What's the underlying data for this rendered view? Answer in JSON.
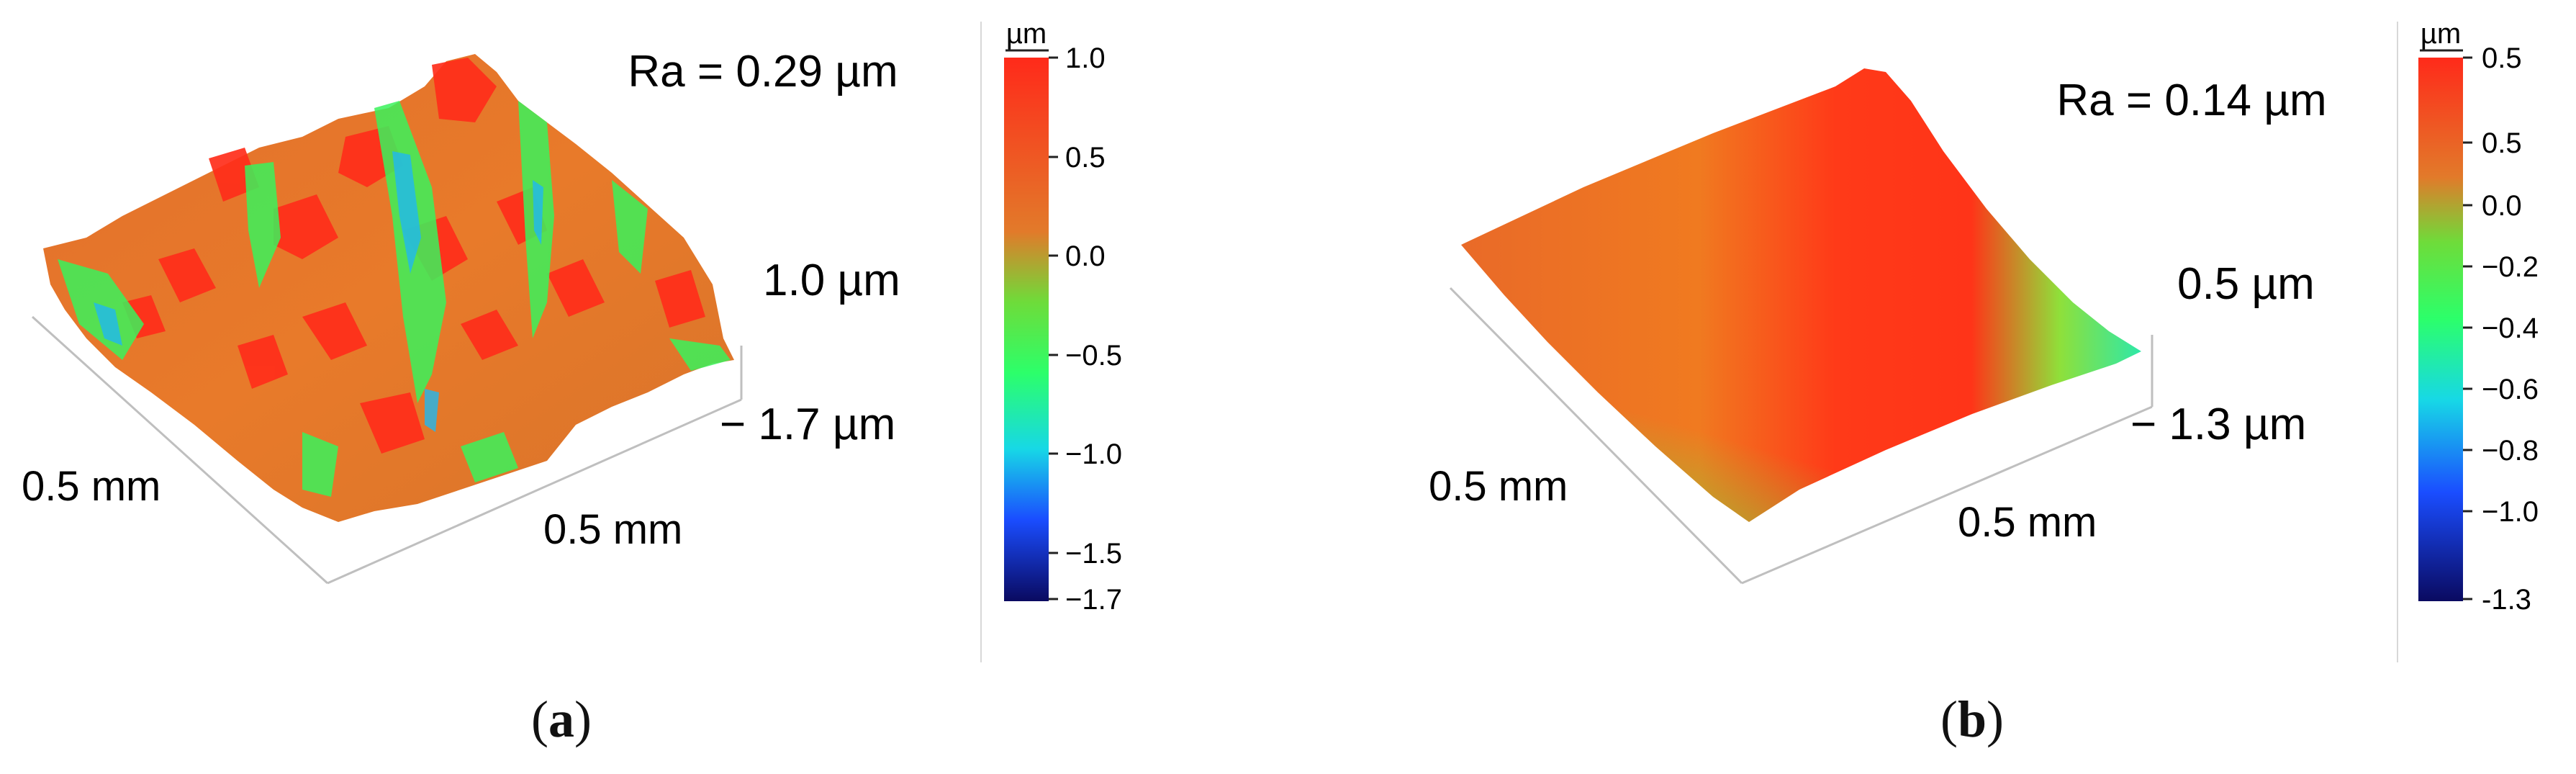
{
  "panels": [
    {
      "ra": "Ra = 0.29 µm",
      "z_top": "1.0 µm",
      "z_bottom": "− 1.7 µm",
      "x_dim": "0.5 mm",
      "y_dim": "0.5 mm",
      "colorbar": {
        "unit": "µm",
        "ticks": [
          "1.0",
          "0.5",
          "0.0",
          "−0.5",
          "−1.0",
          "−1.5",
          "−1.7"
        ]
      },
      "letter": "a"
    },
    {
      "ra": "Ra = 0.14 µm",
      "z_top": "0.5 µm",
      "z_bottom": "− 1.3 µm",
      "x_dim": "0.5 mm",
      "y_dim": "0.5 mm",
      "colorbar": {
        "unit": "µm",
        "ticks": [
          "0.5",
          "0.5",
          "0.0",
          "−0.2",
          "−0.4",
          "−0.6",
          "−0.8",
          "−1.0",
          "-1.3"
        ]
      },
      "letter": "b"
    }
  ],
  "colors": {
    "red": "#ff2a1a",
    "orange": "#e8702a",
    "green": "#3cff3c",
    "cyan": "#17e5d6",
    "blue": "#1a4dff",
    "navy": "#0a0a60"
  },
  "paren_open": "(",
  "paren_close": ")"
}
